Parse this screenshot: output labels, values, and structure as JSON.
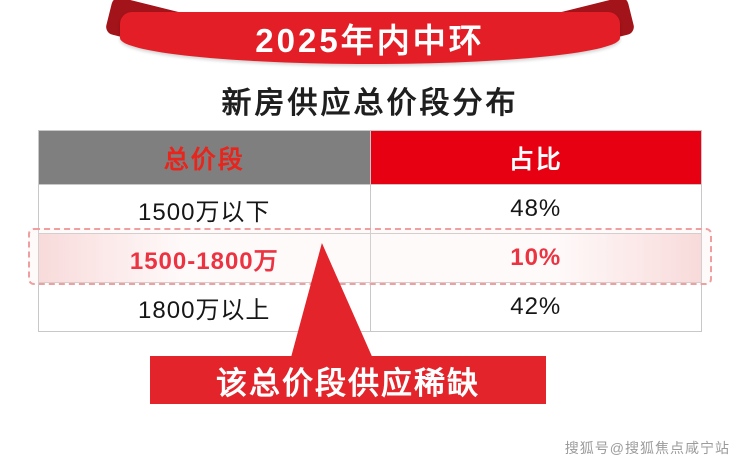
{
  "banner": {
    "title": "2025年内中环"
  },
  "subtitle": "新房供应总价段分布",
  "table": {
    "headers": [
      "总价段",
      "占比"
    ],
    "rows": [
      {
        "label": "1500万以下",
        "value": "48%",
        "highlighted": false
      },
      {
        "label": "1500-1800万",
        "value": "10%",
        "highlighted": true
      },
      {
        "label": "1800万以上",
        "value": "42%",
        "highlighted": false
      }
    ]
  },
  "callout": {
    "text": "该总价段供应稀缺"
  },
  "watermark": "搜狐号@搜狐焦点咸宁站",
  "colors": {
    "accent_red": "#e3242b",
    "ribbon_fold_dark_red": "#a3131a",
    "header_red": "#e60012",
    "header_gray": "#7f7f7f",
    "highlight_text_red": "#e60012",
    "dashed_outline_pink": "#ef9f9f"
  },
  "chart_data": {
    "type": "table",
    "title": "2025年内中环 新房供应总价段分布",
    "columns": [
      "总价段",
      "占比"
    ],
    "categories": [
      "1500万以下",
      "1500-1800万",
      "1800万以上"
    ],
    "values": [
      48,
      10,
      42
    ],
    "value_unit": "%",
    "highlighted_category": "1500-1800万",
    "highlighted_value": 10,
    "annotation": "该总价段供应稀缺",
    "legend_position": "none",
    "grid": false
  }
}
